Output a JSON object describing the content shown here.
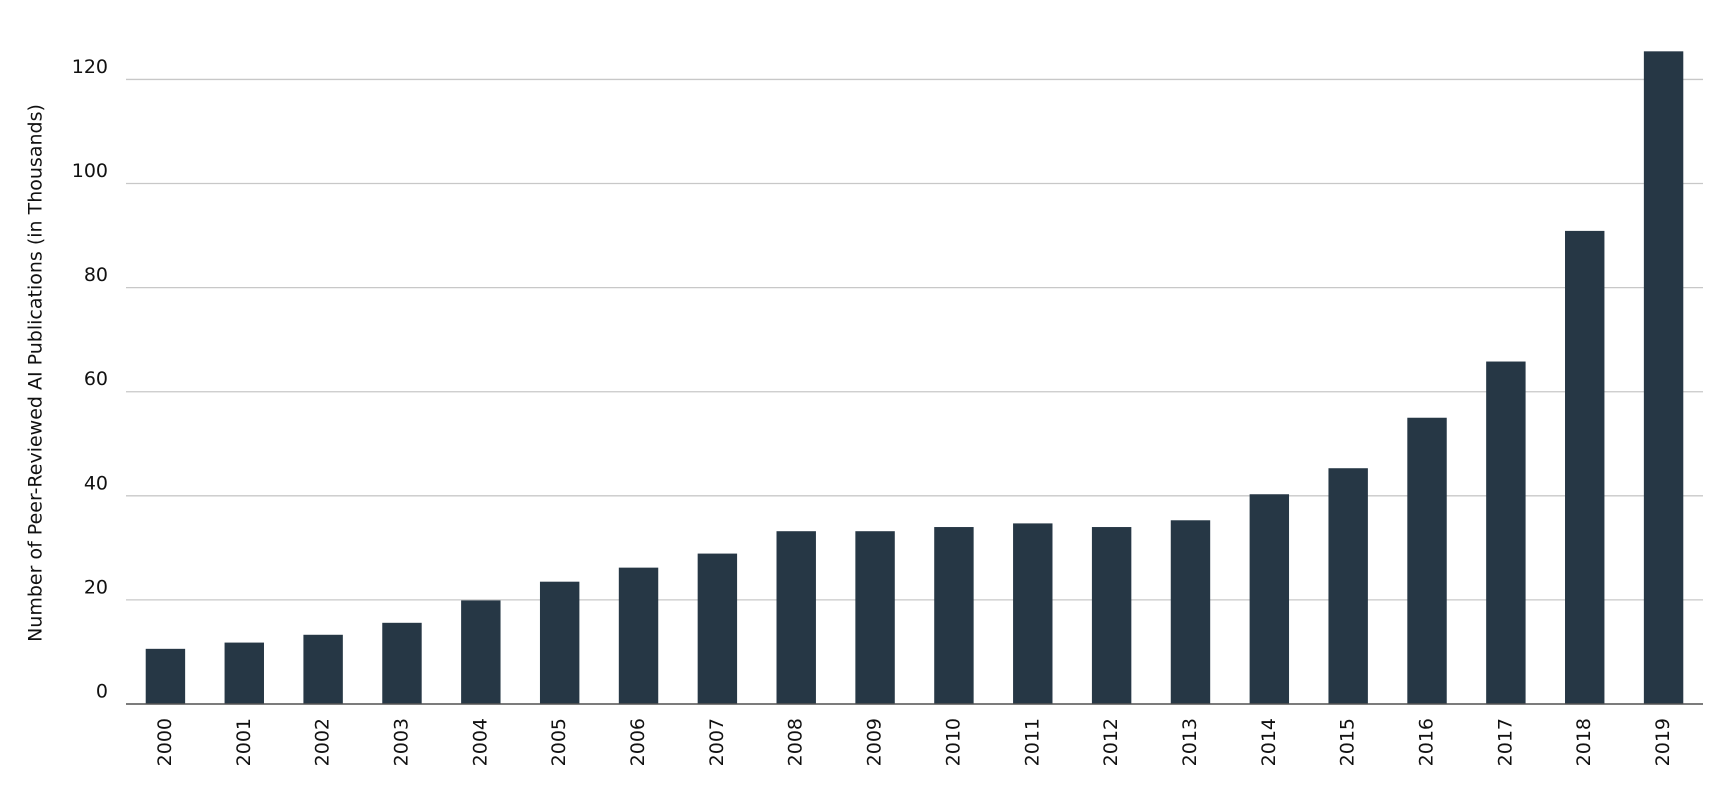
{
  "chart_data": {
    "type": "bar",
    "y_label": "Number of Peer-Reviewed AI Publications (in Thousands)",
    "categories": [
      "2000",
      "2001",
      "2002",
      "2003",
      "2004",
      "2005",
      "2006",
      "2007",
      "2008",
      "2009",
      "2010",
      "2011",
      "2012",
      "2013",
      "2014",
      "2015",
      "2016",
      "2017",
      "2018",
      "2019"
    ],
    "values": [
      10.6,
      11.8,
      13.3,
      15.6,
      19.9,
      23.5,
      26.2,
      28.9,
      33.2,
      33.2,
      34.0,
      34.7,
      34.0,
      35.3,
      40.3,
      45.3,
      55.0,
      65.8,
      90.9,
      125.4
    ],
    "color": "#263745",
    "ylim": [
      0,
      127
    ],
    "yticks": [
      0,
      20,
      40,
      60,
      80,
      100,
      120
    ],
    "grid": true
  }
}
